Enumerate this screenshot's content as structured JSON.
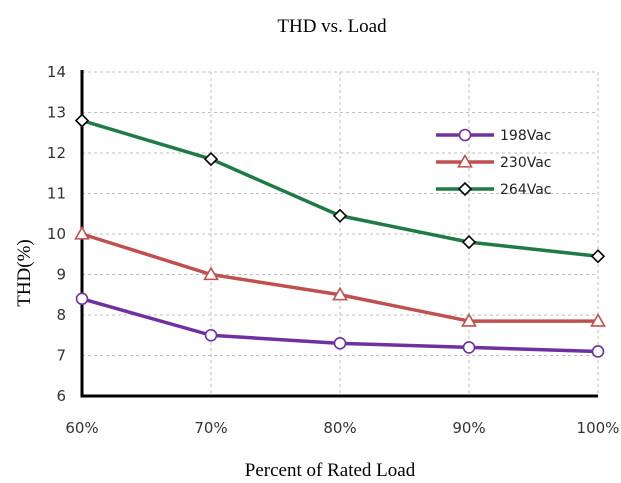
{
  "chart_data": {
    "type": "line",
    "title": "THD vs. Load",
    "xlabel": "Percent of Rated Load",
    "ylabel": "THD(%)",
    "categories": [
      "60%",
      "70%",
      "80%",
      "90%",
      "100%"
    ],
    "ylim": [
      6,
      14
    ],
    "yticks": [
      6,
      7,
      8,
      9,
      10,
      11,
      12,
      13,
      14
    ],
    "grid": true,
    "legend_position": "top-right",
    "series": [
      {
        "name": "198Vac",
        "values": [
          8.4,
          7.5,
          7.3,
          7.2,
          7.1
        ],
        "color": "#7030a0",
        "marker": "circle"
      },
      {
        "name": "230Vac",
        "values": [
          10.0,
          9.0,
          8.5,
          7.85,
          7.85
        ],
        "color": "#c0504d",
        "marker": "triangle"
      },
      {
        "name": "264Vac",
        "values": [
          12.8,
          11.85,
          10.45,
          9.8,
          9.45
        ],
        "color": "#1e7b45",
        "marker": "diamond"
      }
    ]
  }
}
